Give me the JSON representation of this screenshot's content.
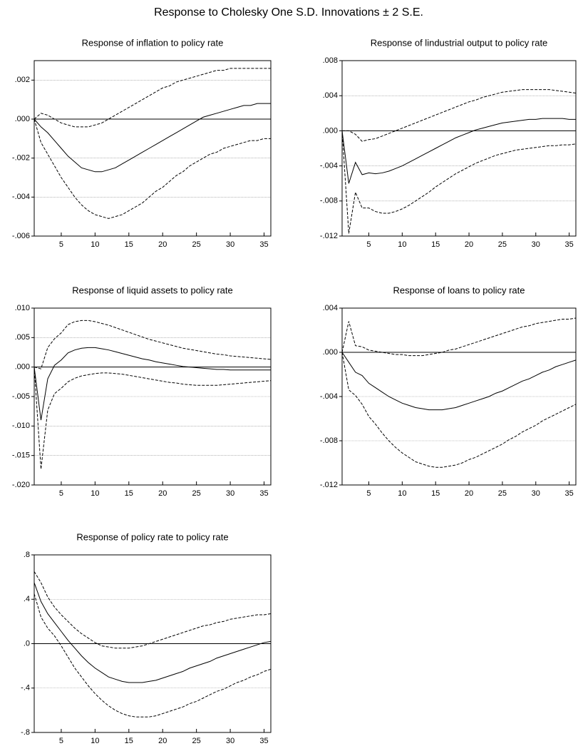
{
  "title": "Response to Cholesky One S.D. Innovations ± 2 S.E.",
  "chart_data": [
    {
      "type": "line",
      "title": "Response of inflation to policy rate",
      "x": [
        1,
        2,
        3,
        4,
        5,
        6,
        7,
        8,
        9,
        10,
        11,
        12,
        13,
        14,
        15,
        16,
        17,
        18,
        19,
        20,
        21,
        22,
        23,
        24,
        25,
        26,
        27,
        28,
        29,
        30,
        31,
        32,
        33,
        34,
        35,
        36
      ],
      "xlim": [
        1,
        36
      ],
      "xticks": [
        5,
        10,
        15,
        20,
        25,
        30,
        35
      ],
      "ylim": [
        -0.006,
        0.003
      ],
      "yticks": [
        {
          "value": 0.002,
          "label": ".002"
        },
        {
          "value": 0,
          "label": ".000"
        },
        {
          "value": -0.002,
          "label": "-.002"
        },
        {
          "value": -0.004,
          "label": "-.004"
        },
        {
          "value": -0.006,
          "label": "-.006"
        }
      ],
      "grid": true,
      "zero_line": true,
      "series": [
        {
          "color": "#000000",
          "dashed": false,
          "values": [
            0,
            -0.0004,
            -0.0007,
            -0.0011,
            -0.0015,
            -0.0019,
            -0.0022,
            -0.0025,
            -0.0026,
            -0.0027,
            -0.0027,
            -0.0026,
            -0.0025,
            -0.0023,
            -0.0021,
            -0.0019,
            -0.0017,
            -0.0015,
            -0.0013,
            -0.0011,
            -0.0009,
            -0.0007,
            -0.0005,
            -0.0003,
            -0.0001,
            0.0001,
            0.0002,
            0.0003,
            0.0004,
            0.0005,
            0.0006,
            0.0007,
            0.0007,
            0.0008,
            0.0008,
            0.0008
          ]
        },
        {
          "color": "#000000",
          "dashed": true,
          "values": [
            0,
            0.0003,
            0.0002,
            0,
            -0.0002,
            -0.0003,
            -0.0004,
            -0.0004,
            -0.0004,
            -0.0003,
            -0.0002,
            0,
            0.0002,
            0.0004,
            0.0006,
            0.0008,
            0.001,
            0.0012,
            0.0014,
            0.0016,
            0.0017,
            0.0019,
            0.002,
            0.0021,
            0.0022,
            0.0023,
            0.0024,
            0.0025,
            0.0025,
            0.0026,
            0.0026,
            0.0026,
            0.0026,
            0.0026,
            0.0026,
            0.0026
          ]
        },
        {
          "color": "#000000",
          "dashed": true,
          "values": [
            0,
            -0.0012,
            -0.0018,
            -0.0024,
            -0.003,
            -0.0035,
            -0.004,
            -0.0044,
            -0.0047,
            -0.0049,
            -0.005,
            -0.0051,
            -0.005,
            -0.0049,
            -0.0047,
            -0.0045,
            -0.0043,
            -0.004,
            -0.0037,
            -0.0035,
            -0.0032,
            -0.0029,
            -0.0027,
            -0.0024,
            -0.0022,
            -0.002,
            -0.0018,
            -0.0017,
            -0.0015,
            -0.0014,
            -0.0013,
            -0.0012,
            -0.0011,
            -0.0011,
            -0.001,
            -0.001
          ]
        }
      ]
    },
    {
      "type": "line",
      "title": "Response of lindustrial output to policy rate",
      "x": [
        1,
        2,
        3,
        4,
        5,
        6,
        7,
        8,
        9,
        10,
        11,
        12,
        13,
        14,
        15,
        16,
        17,
        18,
        19,
        20,
        21,
        22,
        23,
        24,
        25,
        26,
        27,
        28,
        29,
        30,
        31,
        32,
        33,
        34,
        35,
        36
      ],
      "xlim": [
        1,
        36
      ],
      "xticks": [
        5,
        10,
        15,
        20,
        25,
        30,
        35
      ],
      "ylim": [
        -0.012,
        0.008
      ],
      "yticks": [
        {
          "value": 0.008,
          "label": ".008"
        },
        {
          "value": 0.004,
          "label": ".004"
        },
        {
          "value": 0,
          "label": ".000"
        },
        {
          "value": -0.004,
          "label": "-.004"
        },
        {
          "value": -0.008,
          "label": "-.008"
        },
        {
          "value": -0.012,
          "label": "-.012"
        }
      ],
      "grid": true,
      "zero_line": true,
      "series": [
        {
          "color": "#000000",
          "dashed": false,
          "values": [
            0,
            -0.006,
            -0.0036,
            -0.005,
            -0.0048,
            -0.0049,
            -0.0048,
            -0.0046,
            -0.0043,
            -0.004,
            -0.0036,
            -0.0032,
            -0.0028,
            -0.0024,
            -0.002,
            -0.0016,
            -0.0012,
            -0.0008,
            -0.0005,
            -0.0002,
            0.0001,
            0.0003,
            0.0005,
            0.0007,
            0.0009,
            0.001,
            0.0011,
            0.0012,
            0.0013,
            0.0013,
            0.0014,
            0.0014,
            0.0014,
            0.0014,
            0.0013,
            0.0013
          ]
        },
        {
          "color": "#000000",
          "dashed": true,
          "values": [
            0,
            0,
            -0.0004,
            -0.0012,
            -0.001,
            -0.0009,
            -0.0006,
            -0.0003,
            0,
            0.0003,
            0.0006,
            0.0009,
            0.0012,
            0.0015,
            0.0018,
            0.0021,
            0.0024,
            0.0027,
            0.003,
            0.0033,
            0.0035,
            0.0038,
            0.004,
            0.0042,
            0.0044,
            0.0045,
            0.0046,
            0.0047,
            0.0047,
            0.0047,
            0.0047,
            0.0047,
            0.0046,
            0.0045,
            0.0044,
            0.0043
          ]
        },
        {
          "color": "#000000",
          "dashed": true,
          "values": [
            0,
            -0.0117,
            -0.007,
            -0.0088,
            -0.0088,
            -0.0092,
            -0.0094,
            -0.0094,
            -0.0092,
            -0.0089,
            -0.0085,
            -0.008,
            -0.0075,
            -0.007,
            -0.0064,
            -0.0059,
            -0.0054,
            -0.0049,
            -0.0045,
            -0.0041,
            -0.0037,
            -0.0034,
            -0.0031,
            -0.0028,
            -0.0026,
            -0.0024,
            -0.0022,
            -0.0021,
            -0.002,
            -0.0019,
            -0.0018,
            -0.0017,
            -0.0017,
            -0.0016,
            -0.0016,
            -0.0015
          ]
        }
      ]
    },
    {
      "type": "line",
      "title": "Response of liquid assets to policy rate",
      "x": [
        1,
        2,
        3,
        4,
        5,
        6,
        7,
        8,
        9,
        10,
        11,
        12,
        13,
        14,
        15,
        16,
        17,
        18,
        19,
        20,
        21,
        22,
        23,
        24,
        25,
        26,
        27,
        28,
        29,
        30,
        31,
        32,
        33,
        34,
        35,
        36
      ],
      "xlim": [
        1,
        36
      ],
      "xticks": [
        5,
        10,
        15,
        20,
        25,
        30,
        35
      ],
      "ylim": [
        -0.02,
        0.01
      ],
      "yticks": [
        {
          "value": 0.01,
          "label": ".010"
        },
        {
          "value": 0.005,
          "label": ".005"
        },
        {
          "value": 0,
          "label": ".000"
        },
        {
          "value": -0.005,
          "label": "-.005"
        },
        {
          "value": -0.01,
          "label": "-.010"
        },
        {
          "value": -0.015,
          "label": "-.015"
        },
        {
          "value": -0.02,
          "label": "-.020"
        }
      ],
      "grid": true,
      "zero_line": true,
      "series": [
        {
          "color": "#000000",
          "dashed": false,
          "values": [
            0,
            -0.009,
            -0.002,
            0.0003,
            0.0012,
            0.0024,
            0.0029,
            0.0032,
            0.0033,
            0.0033,
            0.0031,
            0.0029,
            0.0026,
            0.0023,
            0.002,
            0.0017,
            0.0014,
            0.0012,
            0.0009,
            0.0007,
            0.0005,
            0.0003,
            0.0001,
            0,
            -0.0001,
            -0.0002,
            -0.0003,
            -0.0004,
            -0.0004,
            -0.0005,
            -0.0005,
            -0.0005,
            -0.0005,
            -0.0005,
            -0.0005,
            -0.0005
          ]
        },
        {
          "color": "#000000",
          "dashed": true,
          "values": [
            0,
            -0.0003,
            0.0033,
            0.0048,
            0.0058,
            0.0072,
            0.0077,
            0.0079,
            0.0079,
            0.0077,
            0.0074,
            0.0071,
            0.0067,
            0.0063,
            0.0059,
            0.0055,
            0.0051,
            0.0047,
            0.0044,
            0.0041,
            0.0038,
            0.0035,
            0.0032,
            0.003,
            0.0028,
            0.0026,
            0.0024,
            0.0022,
            0.0021,
            0.0019,
            0.0018,
            0.0017,
            0.0016,
            0.0015,
            0.0014,
            0.0013
          ]
        },
        {
          "color": "#000000",
          "dashed": true,
          "values": [
            0,
            -0.0173,
            -0.0073,
            -0.0045,
            -0.0036,
            -0.0025,
            -0.0019,
            -0.0015,
            -0.0013,
            -0.0011,
            -0.001,
            -0.001,
            -0.0011,
            -0.0012,
            -0.0014,
            -0.0016,
            -0.0018,
            -0.002,
            -0.0022,
            -0.0024,
            -0.0026,
            -0.0027,
            -0.0029,
            -0.003,
            -0.0031,
            -0.0031,
            -0.0031,
            -0.0031,
            -0.003,
            -0.0029,
            -0.0028,
            -0.0027,
            -0.0026,
            -0.0025,
            -0.0024,
            -0.0023
          ]
        }
      ]
    },
    {
      "type": "line",
      "title": "Response of loans to policy rate",
      "x": [
        1,
        2,
        3,
        4,
        5,
        6,
        7,
        8,
        9,
        10,
        11,
        12,
        13,
        14,
        15,
        16,
        17,
        18,
        19,
        20,
        21,
        22,
        23,
        24,
        25,
        26,
        27,
        28,
        29,
        30,
        31,
        32,
        33,
        34,
        35,
        36
      ],
      "xlim": [
        1,
        36
      ],
      "xticks": [
        5,
        10,
        15,
        20,
        25,
        30,
        35
      ],
      "ylim": [
        -0.012,
        0.004
      ],
      "yticks": [
        {
          "value": 0.004,
          "label": ".004"
        },
        {
          "value": 0,
          "label": ".000"
        },
        {
          "value": -0.004,
          "label": "-.004"
        },
        {
          "value": -0.008,
          "label": "-.008"
        },
        {
          "value": -0.012,
          "label": "-.012"
        }
      ],
      "grid": true,
      "zero_line": true,
      "series": [
        {
          "color": "#000000",
          "dashed": false,
          "values": [
            0,
            -0.0009,
            -0.0018,
            -0.0021,
            -0.0028,
            -0.0032,
            -0.0036,
            -0.004,
            -0.0043,
            -0.0046,
            -0.0048,
            -0.005,
            -0.0051,
            -0.0052,
            -0.0052,
            -0.0052,
            -0.0051,
            -0.005,
            -0.0048,
            -0.0046,
            -0.0044,
            -0.0042,
            -0.004,
            -0.0037,
            -0.0035,
            -0.0032,
            -0.0029,
            -0.0026,
            -0.0024,
            -0.0021,
            -0.0018,
            -0.0016,
            -0.0013,
            -0.0011,
            -0.0009,
            -0.0007
          ]
        },
        {
          "color": "#000000",
          "dashed": true,
          "values": [
            0,
            0.0028,
            0.0006,
            0.0005,
            0.0002,
            0.0001,
            0,
            -0.0001,
            -0.0002,
            -0.0002,
            -0.0003,
            -0.0003,
            -0.0003,
            -0.0002,
            -0.0001,
            0,
            0.0002,
            0.0003,
            0.0005,
            0.0007,
            0.0009,
            0.0011,
            0.0013,
            0.0015,
            0.0017,
            0.0019,
            0.0021,
            0.0023,
            0.0024,
            0.0026,
            0.0027,
            0.0028,
            0.0029,
            0.003,
            0.003,
            0.0031
          ]
        },
        {
          "color": "#000000",
          "dashed": true,
          "values": [
            0,
            -0.0034,
            -0.0039,
            -0.0047,
            -0.0058,
            -0.0065,
            -0.0073,
            -0.008,
            -0.0086,
            -0.0091,
            -0.0095,
            -0.0099,
            -0.0101,
            -0.0103,
            -0.0104,
            -0.0104,
            -0.0103,
            -0.0102,
            -0.01,
            -0.0097,
            -0.0095,
            -0.0092,
            -0.0089,
            -0.0086,
            -0.0083,
            -0.0079,
            -0.0076,
            -0.0072,
            -0.0069,
            -0.0066,
            -0.0062,
            -0.0059,
            -0.0056,
            -0.0053,
            -0.005,
            -0.0047
          ]
        }
      ]
    },
    {
      "type": "line",
      "title": "Response of policy rate to policy rate",
      "x": [
        1,
        2,
        3,
        4,
        5,
        6,
        7,
        8,
        9,
        10,
        11,
        12,
        13,
        14,
        15,
        16,
        17,
        18,
        19,
        20,
        21,
        22,
        23,
        24,
        25,
        26,
        27,
        28,
        29,
        30,
        31,
        32,
        33,
        34,
        35,
        36
      ],
      "xlim": [
        1,
        36
      ],
      "xticks": [
        5,
        10,
        15,
        20,
        25,
        30,
        35
      ],
      "ylim": [
        -0.8,
        0.8
      ],
      "yticks": [
        {
          "value": 0.8,
          "label": ".8"
        },
        {
          "value": 0.4,
          "label": ".4"
        },
        {
          "value": 0,
          "label": ".0"
        },
        {
          "value": -0.4,
          "label": "-.4"
        },
        {
          "value": -0.8,
          "label": "-.8"
        }
      ],
      "grid": true,
      "zero_line": true,
      "series": [
        {
          "color": "#000000",
          "dashed": false,
          "values": [
            0.55,
            0.38,
            0.27,
            0.19,
            0.11,
            0.03,
            -0.04,
            -0.11,
            -0.17,
            -0.22,
            -0.26,
            -0.3,
            -0.32,
            -0.34,
            -0.35,
            -0.35,
            -0.35,
            -0.34,
            -0.33,
            -0.31,
            -0.29,
            -0.27,
            -0.25,
            -0.22,
            -0.2,
            -0.18,
            -0.16,
            -0.13,
            -0.11,
            -0.09,
            -0.07,
            -0.05,
            -0.03,
            -0.01,
            0.01,
            0.02
          ]
        },
        {
          "color": "#000000",
          "dashed": true,
          "values": [
            0.65,
            0.55,
            0.42,
            0.33,
            0.26,
            0.2,
            0.14,
            0.09,
            0.05,
            0.01,
            -0.02,
            -0.03,
            -0.04,
            -0.04,
            -0.04,
            -0.03,
            -0.02,
            0,
            0.02,
            0.04,
            0.06,
            0.08,
            0.1,
            0.12,
            0.14,
            0.16,
            0.17,
            0.19,
            0.2,
            0.22,
            0.23,
            0.24,
            0.25,
            0.26,
            0.26,
            0.27
          ]
        },
        {
          "color": "#000000",
          "dashed": true,
          "values": [
            0.45,
            0.24,
            0.14,
            0.07,
            -0.02,
            -0.12,
            -0.22,
            -0.3,
            -0.38,
            -0.45,
            -0.51,
            -0.56,
            -0.6,
            -0.63,
            -0.65,
            -0.66,
            -0.66,
            -0.66,
            -0.65,
            -0.63,
            -0.61,
            -0.59,
            -0.57,
            -0.54,
            -0.52,
            -0.49,
            -0.46,
            -0.43,
            -0.41,
            -0.38,
            -0.35,
            -0.33,
            -0.3,
            -0.28,
            -0.25,
            -0.23
          ]
        }
      ]
    }
  ]
}
